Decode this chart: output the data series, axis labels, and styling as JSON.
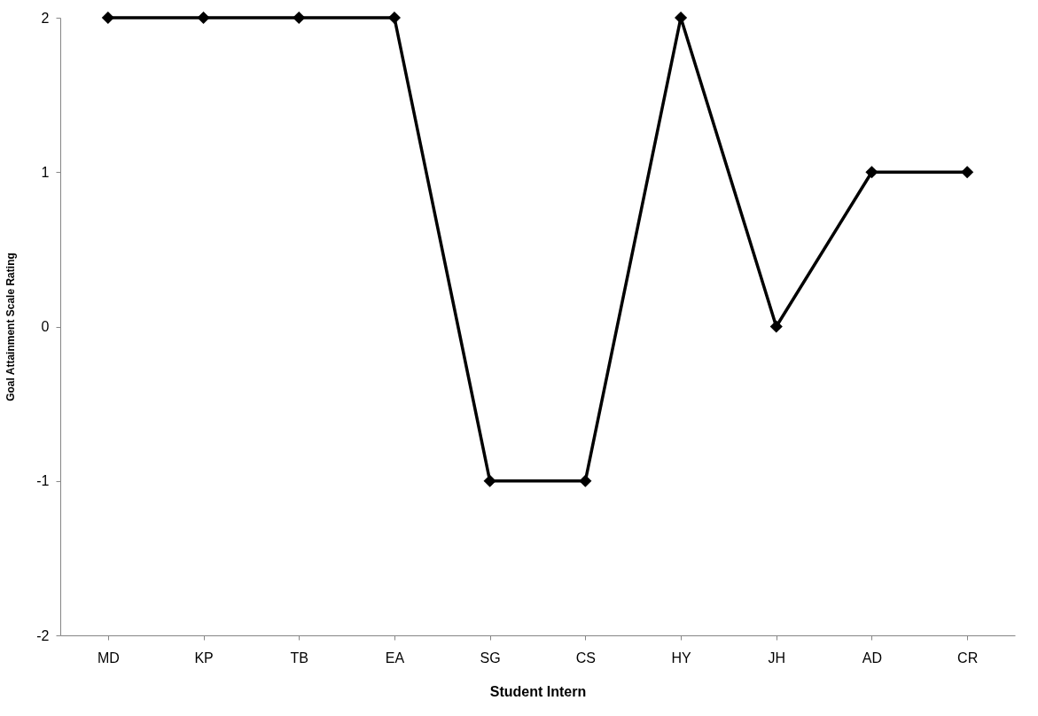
{
  "chart_data": {
    "type": "line",
    "xlabel": "Student Intern",
    "ylabel": "Goal Attainment Scale Rating",
    "categories": [
      "MD",
      "KP",
      "TB",
      "EA",
      "SG",
      "CS",
      "HY",
      "JH",
      "AD",
      "CR"
    ],
    "series": [
      {
        "color": "#000000",
        "values": [
          2,
          2,
          2,
          2,
          -1,
          -1,
          2,
          0,
          1,
          1
        ]
      }
    ],
    "ylim": [
      -2,
      2
    ],
    "yticks": [
      -2,
      -1,
      0,
      1,
      2
    ],
    "grid": false,
    "marker": "diamond",
    "line_style": "solid"
  }
}
